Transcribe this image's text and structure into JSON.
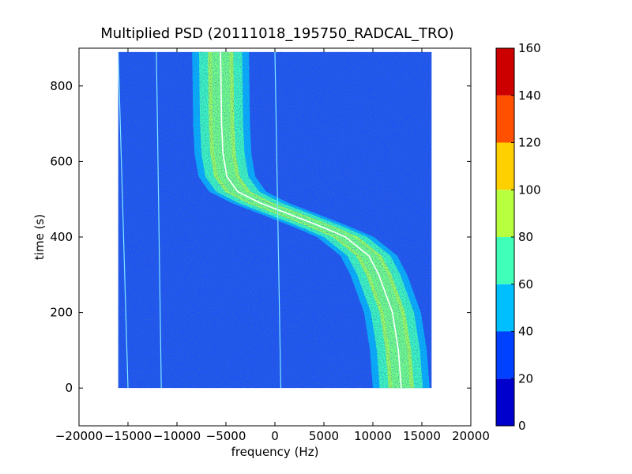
{
  "chart_data": {
    "type": "heatmap",
    "title": "Multiplied PSD (20111018_195750_RADCAL_TRO)",
    "xlabel": "frequency (Hz)",
    "ylabel": "time (s)",
    "xlim": [
      -20000,
      20000
    ],
    "ylim": [
      -100,
      900
    ],
    "xticks": [
      -20000,
      -15000,
      -10000,
      -5000,
      0,
      5000,
      10000,
      15000,
      20000
    ],
    "xtick_labels": [
      "−20000",
      "−15000",
      "−10000",
      "−5000",
      "0",
      "5000",
      "10000",
      "15000",
      "20000"
    ],
    "yticks": [
      0,
      200,
      400,
      600,
      800
    ],
    "ytick_labels": [
      "0",
      "200",
      "400",
      "600",
      "800"
    ],
    "data_extent": {
      "x": [
        -16000,
        16000
      ],
      "y": [
        0,
        890
      ]
    },
    "colorbar": {
      "levels": [
        0,
        20,
        40,
        60,
        80,
        100,
        120,
        140,
        160
      ],
      "level_labels": [
        "0",
        "20",
        "40",
        "60",
        "80",
        "100",
        "120",
        "140",
        "160"
      ],
      "colors": [
        "#0000cd",
        "#0040ff",
        "#00bfff",
        "#40ffb8",
        "#b8ff40",
        "#ffd000",
        "#ff5000",
        "#cd0000"
      ]
    },
    "background_color": "#1e55f0",
    "signal_track": {
      "description_of_curve": "sigmoid frequency drift",
      "t": [
        0,
        100,
        200,
        300,
        350,
        400,
        430,
        460,
        490,
        520,
        560,
        620,
        700,
        800,
        890
      ],
      "f": [
        12900,
        12600,
        12000,
        10600,
        9600,
        7200,
        4500,
        1500,
        -1500,
        -3800,
        -4900,
        -5300,
        -5450,
        -5500,
        -5550
      ]
    },
    "weak_lines": [
      {
        "f_top": -16000,
        "f_bottom": -15000
      },
      {
        "f_top": -12100,
        "f_bottom": -11600
      },
      {
        "f_top": 0,
        "f_bottom": 600
      }
    ]
  }
}
